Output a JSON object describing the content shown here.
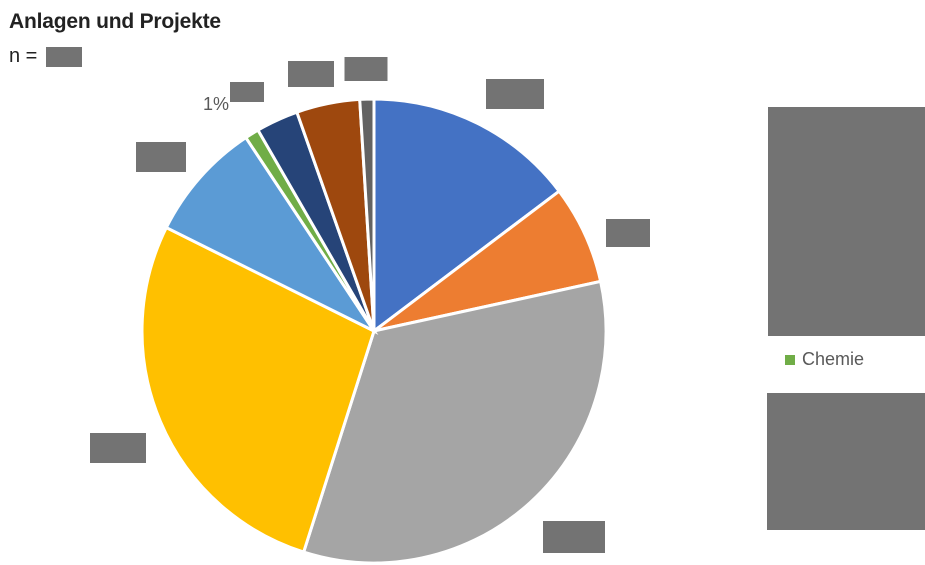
{
  "chart_data": {
    "type": "pie",
    "title": "Anlagen und Projekte",
    "subtitle_prefix": "n =",
    "slices": [
      {
        "name": "",
        "value": 15,
        "color": "#4472C4",
        "label": ""
      },
      {
        "name": "",
        "value": 7,
        "color": "#ED7D31",
        "label": ""
      },
      {
        "name": "",
        "value": 34,
        "color": "#A5A5A5",
        "label": ""
      },
      {
        "name": "",
        "value": 28,
        "color": "#FFC000",
        "label": ""
      },
      {
        "name": "",
        "value": 8.5,
        "color": "#5B9BD5",
        "label": ""
      },
      {
        "name": "Chemie",
        "value": 1,
        "color": "#70AD47",
        "label": "1%"
      },
      {
        "name": "",
        "value": 3,
        "color": "#264478",
        "label": ""
      },
      {
        "name": "",
        "value": 4.5,
        "color": "#9E480E",
        "label": ""
      },
      {
        "name": "",
        "value": 1,
        "color": "#636363",
        "label": ""
      }
    ],
    "legend": {
      "position": "right",
      "visible_entries": [
        "Chemie"
      ]
    }
  }
}
